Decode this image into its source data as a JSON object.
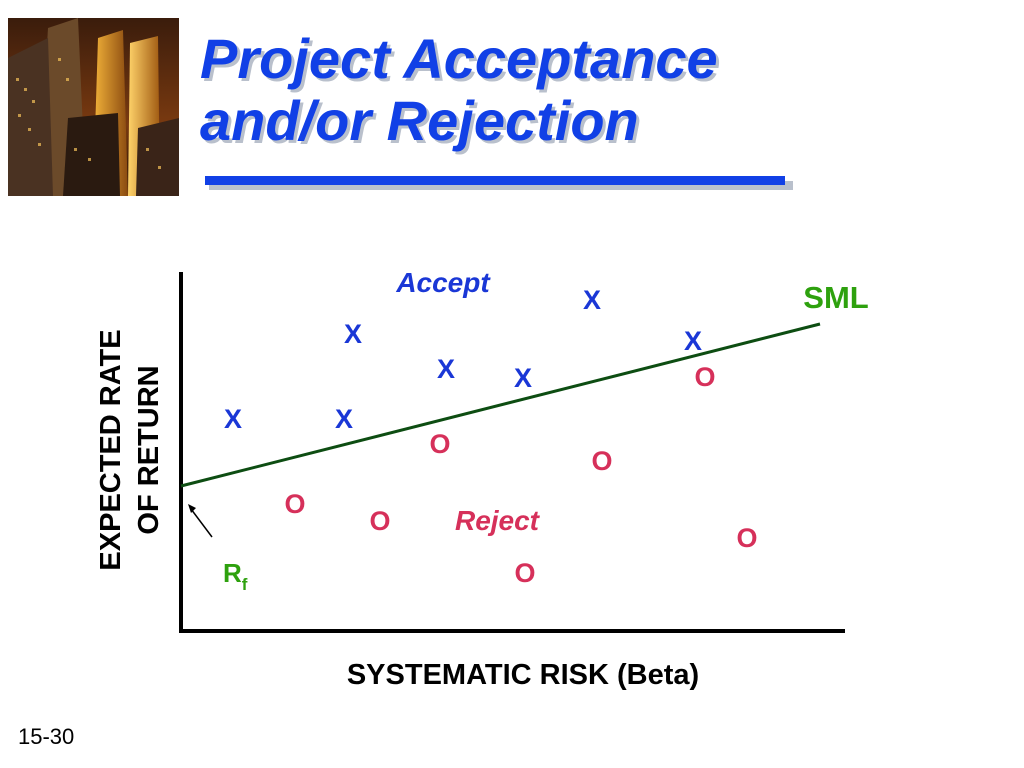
{
  "slide": {
    "title_line1": "Project Acceptance",
    "title_line2": "and/or Rejection",
    "page_number": "15-30",
    "logo_icon": "city-skyline-photo-icon"
  },
  "diagram": {
    "y_axis_label_line1": "EXPECTED RATE",
    "y_axis_label_line2": "OF RETURN",
    "x_axis_label": "SYSTEMATIC RISK (Beta)",
    "sml_label": "SML",
    "rf_label_main": "R",
    "rf_label_sub": "f",
    "accept_label": "Accept",
    "reject_label": "Reject",
    "accept_marker": "X",
    "reject_marker": "O",
    "colors": {
      "title": "#1140e6",
      "accept": "#1a37d6",
      "reject": "#d6305a",
      "sml_line": "#0d4d12",
      "sml_label": "#2ea10e",
      "axis": "#000000"
    }
  }
}
